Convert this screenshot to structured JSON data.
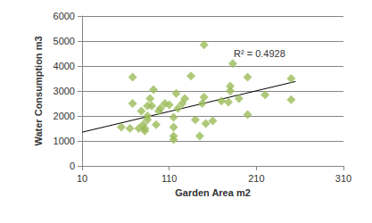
{
  "chart_data": {
    "type": "scatter",
    "x_label": "Garden Area m2",
    "y_label": "Water Consumption m3",
    "xlim": [
      10,
      310
    ],
    "xticks": [
      10,
      110,
      210,
      310
    ],
    "ylim": [
      0,
      6000
    ],
    "yticks": [
      0,
      1000,
      2000,
      3000,
      4000,
      5000,
      6000
    ],
    "grid": true,
    "marker": "diamond",
    "color": "#9bbb59",
    "x": [
      55,
      65,
      68,
      68,
      75,
      78,
      80,
      82,
      82,
      85,
      85,
      85,
      88,
      90,
      92,
      95,
      98,
      100,
      105,
      110,
      115,
      115,
      115,
      115,
      118,
      120,
      125,
      128,
      135,
      140,
      145,
      148,
      150,
      150,
      152,
      160,
      170,
      178,
      180,
      180,
      183,
      190,
      200,
      200,
      220,
      250,
      250
    ],
    "values": [
      1550,
      1500,
      2500,
      3550,
      1500,
      2200,
      1650,
      1400,
      1500,
      2000,
      1850,
      2400,
      2700,
      2400,
      3050,
      1650,
      2200,
      2300,
      2500,
      2450,
      1050,
      1200,
      1550,
      1950,
      2900,
      2300,
      2500,
      2700,
      3600,
      1850,
      1200,
      2500,
      2750,
      4850,
      1700,
      1800,
      2600,
      2550,
      3000,
      3200,
      4100,
      2700,
      3550,
      2050,
      2850,
      2650,
      3500
    ],
    "trendline": {
      "x": [
        10,
        255
      ],
      "values": [
        1350,
        3380
      ],
      "color": "#000000",
      "line_style": "solid"
    },
    "annotation": "R² = 0.4928"
  }
}
